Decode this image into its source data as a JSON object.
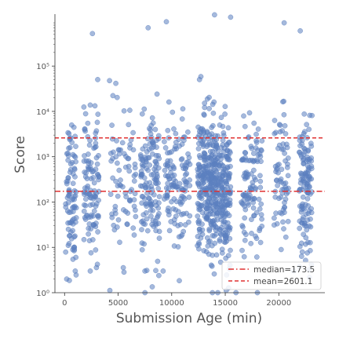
{
  "chart_data": {
    "type": "scatter",
    "xlabel": "Submission Age (min)",
    "ylabel": "Score",
    "x_ticks": [
      0,
      5000,
      10000,
      15000,
      20000
    ],
    "x_tick_labels": [
      "0",
      "5000",
      "10000",
      "15000",
      "20000"
    ],
    "xlim": [
      -900,
      24300
    ],
    "y_scale": "log",
    "ylim": [
      1,
      1400000
    ],
    "y_ticks": [
      1,
      10,
      100,
      1000,
      10000,
      100000
    ],
    "y_tick_labels": [
      "10⁰",
      "10¹",
      "10²",
      "10³",
      "10⁴",
      "10⁵"
    ],
    "grid": false,
    "legend_position": "bottom-right",
    "point_color": "#5b7fbf",
    "points_note_unused": null,
    "clusters": [
      {
        "x_center": 600,
        "x_spread": 500,
        "count": 90,
        "y_log_center": 2.2,
        "y_log_spread": 0.8
      },
      {
        "x_center": 2500,
        "x_spread": 700,
        "count": 110,
        "y_log_center": 2.4,
        "y_log_spread": 0.8
      },
      {
        "x_center": 5500,
        "x_spread": 1300,
        "count": 80,
        "y_log_center": 2.5,
        "y_log_spread": 0.8
      },
      {
        "x_center": 8000,
        "x_spread": 900,
        "count": 140,
        "y_log_center": 2.3,
        "y_log_spread": 0.75
      },
      {
        "x_center": 10500,
        "x_spread": 1200,
        "count": 130,
        "y_log_center": 2.4,
        "y_log_spread": 0.75
      },
      {
        "x_center": 13300,
        "x_spread": 900,
        "count": 280,
        "y_log_center": 2.4,
        "y_log_spread": 0.75
      },
      {
        "x_center": 14800,
        "x_spread": 700,
        "count": 200,
        "y_log_center": 2.2,
        "y_log_spread": 0.8
      },
      {
        "x_center": 17500,
        "x_spread": 1000,
        "count": 110,
        "y_log_center": 2.3,
        "y_log_spread": 0.75
      },
      {
        "x_center": 20200,
        "x_spread": 700,
        "count": 70,
        "y_log_center": 2.4,
        "y_log_spread": 0.8
      },
      {
        "x_center": 22500,
        "x_spread": 600,
        "count": 130,
        "y_log_center": 2.3,
        "y_log_spread": 0.75
      }
    ],
    "reference_lines": [
      {
        "label": "median=173.5",
        "value": 173.5,
        "color": "#e03030",
        "style": "dashdot"
      },
      {
        "label": "mean=2601.1",
        "value": 2601.1,
        "color": "#e03030",
        "style": "dashed"
      }
    ],
    "outliers": [
      {
        "x": 14000,
        "y": 1350000
      },
      {
        "x": 15500,
        "y": 1200000
      },
      {
        "x": 9500,
        "y": 950000
      },
      {
        "x": 20500,
        "y": 900000
      },
      {
        "x": 7800,
        "y": 700000
      },
      {
        "x": 22000,
        "y": 600000
      },
      {
        "x": 2600,
        "y": 520000
      },
      {
        "x": 1000,
        "y": 3
      },
      {
        "x": 7500,
        "y": 1
      },
      {
        "x": 13800,
        "y": 1
      },
      {
        "x": 14300,
        "y": 1
      },
      {
        "x": 16000,
        "y": 1
      },
      {
        "x": 18000,
        "y": 1
      },
      {
        "x": 200,
        "y": 2
      },
      {
        "x": 2400,
        "y": 3
      },
      {
        "x": 7500,
        "y": 3
      },
      {
        "x": 9200,
        "y": 3
      },
      {
        "x": 21400,
        "y": 3
      }
    ]
  }
}
